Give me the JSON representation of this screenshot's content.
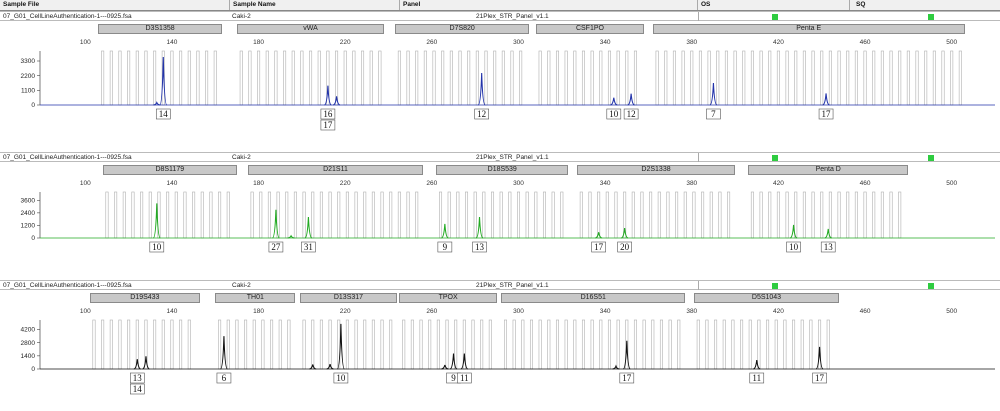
{
  "header": {
    "col_sample_file": "Sample File",
    "col_sample_name": "Sample Name",
    "col_panel": "Panel",
    "col_os": "OS",
    "col_sq": "SQ"
  },
  "x_ticks": [
    "100",
    "140",
    "180",
    "220",
    "260",
    "300",
    "340",
    "380",
    "420",
    "460",
    "500"
  ],
  "panels": [
    {
      "sample_file": "07_G01_CellLineAuthentication-1---0925.fsa",
      "sample_name": "Caki-2",
      "panel_name": "21Plex_STR_Panel_v1.1",
      "color": "#2233aa",
      "y_ticks": [
        "3300",
        "2200",
        "1100",
        "0"
      ],
      "y_max": 3900,
      "loci": [
        {
          "name": "D3S1358",
          "start": 106,
          "end": 163
        },
        {
          "name": "vWA",
          "start": 170,
          "end": 238
        },
        {
          "name": "D7S820",
          "start": 243,
          "end": 305
        },
        {
          "name": "CSF1PO",
          "start": 308,
          "end": 358
        },
        {
          "name": "Penta E",
          "start": 362,
          "end": 506
        }
      ],
      "peaks": [
        {
          "x": 136,
          "h": 3600
        },
        {
          "x": 133,
          "h": 180
        },
        {
          "x": 212,
          "h": 1450
        },
        {
          "x": 216,
          "h": 650
        },
        {
          "x": 283,
          "h": 2400
        },
        {
          "x": 344,
          "h": 550
        },
        {
          "x": 352,
          "h": 850
        },
        {
          "x": 390,
          "h": 1650
        },
        {
          "x": 442,
          "h": 870
        }
      ],
      "calls": [
        {
          "x": 136,
          "labels": [
            "14"
          ]
        },
        {
          "x": 212,
          "labels": [
            "16",
            "17"
          ]
        },
        {
          "x": 283,
          "labels": [
            "12"
          ]
        },
        {
          "x": 344,
          "labels": [
            "10"
          ]
        },
        {
          "x": 352,
          "labels": [
            "12"
          ]
        },
        {
          "x": 390,
          "labels": [
            "7"
          ]
        },
        {
          "x": 442,
          "labels": [
            "17"
          ]
        }
      ]
    },
    {
      "sample_file": "07_G01_CellLineAuthentication-1---0925.fsa",
      "sample_name": "Caki-2",
      "panel_name": "21Plex_STR_Panel_v1.1",
      "color": "#22aa22",
      "y_ticks": [
        "3600",
        "2400",
        "1200",
        "0"
      ],
      "y_max": 4200,
      "loci": [
        {
          "name": "D8S1179",
          "start": 108,
          "end": 170
        },
        {
          "name": "D21S11",
          "start": 175,
          "end": 256
        },
        {
          "name": "D18S539",
          "start": 262,
          "end": 323
        },
        {
          "name": "D2S1338",
          "start": 327,
          "end": 400
        },
        {
          "name": "Penta D",
          "start": 406,
          "end": 480
        }
      ],
      "peaks": [
        {
          "x": 133,
          "h": 3300
        },
        {
          "x": 188,
          "h": 2700
        },
        {
          "x": 203,
          "h": 2000
        },
        {
          "x": 195,
          "h": 200
        },
        {
          "x": 266,
          "h": 1350
        },
        {
          "x": 282,
          "h": 2000
        },
        {
          "x": 337,
          "h": 550
        },
        {
          "x": 349,
          "h": 950
        },
        {
          "x": 427,
          "h": 1250
        },
        {
          "x": 443,
          "h": 860
        }
      ],
      "calls": [
        {
          "x": 133,
          "labels": [
            "10"
          ]
        },
        {
          "x": 188,
          "labels": [
            "27"
          ]
        },
        {
          "x": 203,
          "labels": [
            "31"
          ]
        },
        {
          "x": 266,
          "labels": [
            "9"
          ]
        },
        {
          "x": 282,
          "labels": [
            "13"
          ]
        },
        {
          "x": 337,
          "labels": [
            "17"
          ]
        },
        {
          "x": 349,
          "labels": [
            "20"
          ]
        },
        {
          "x": 427,
          "labels": [
            "10"
          ]
        },
        {
          "x": 443,
          "labels": [
            "13"
          ]
        }
      ]
    },
    {
      "sample_file": "07_G01_CellLineAuthentication-1---0925.fsa",
      "sample_name": "Caki-2",
      "panel_name": "21Plex_STR_Panel_v1.1",
      "color": "#111111",
      "y_ticks": [
        "4200",
        "2800",
        "1400",
        "0"
      ],
      "y_max": 5000,
      "loci": [
        {
          "name": "D19S433",
          "start": 102,
          "end": 153
        },
        {
          "name": "TH01",
          "start": 160,
          "end": 197
        },
        {
          "name": "D13S317",
          "start": 199,
          "end": 244
        },
        {
          "name": "TPOX",
          "start": 245,
          "end": 290
        },
        {
          "name": "D16S51",
          "start": 292,
          "end": 377
        },
        {
          "name": "D5S1043",
          "start": 381,
          "end": 448
        }
      ],
      "peaks": [
        {
          "x": 124,
          "h": 1050
        },
        {
          "x": 128,
          "h": 1350
        },
        {
          "x": 164,
          "h": 3500
        },
        {
          "x": 205,
          "h": 480
        },
        {
          "x": 213,
          "h": 520
        },
        {
          "x": 218,
          "h": 4800
        },
        {
          "x": 270,
          "h": 1650
        },
        {
          "x": 275,
          "h": 1650
        },
        {
          "x": 266,
          "h": 420
        },
        {
          "x": 350,
          "h": 3000
        },
        {
          "x": 345,
          "h": 300
        },
        {
          "x": 410,
          "h": 950
        },
        {
          "x": 439,
          "h": 2350
        }
      ],
      "calls": [
        {
          "x": 124,
          "labels": [
            "13",
            "14"
          ]
        },
        {
          "x": 164,
          "labels": [
            "6"
          ]
        },
        {
          "x": 218,
          "labels": [
            "10"
          ]
        },
        {
          "x": 270,
          "labels": [
            "9"
          ]
        },
        {
          "x": 275,
          "labels": [
            "11"
          ]
        },
        {
          "x": 350,
          "labels": [
            "17"
          ]
        },
        {
          "x": 410,
          "labels": [
            "11"
          ]
        },
        {
          "x": 439,
          "labels": [
            "17"
          ]
        }
      ]
    }
  ]
}
